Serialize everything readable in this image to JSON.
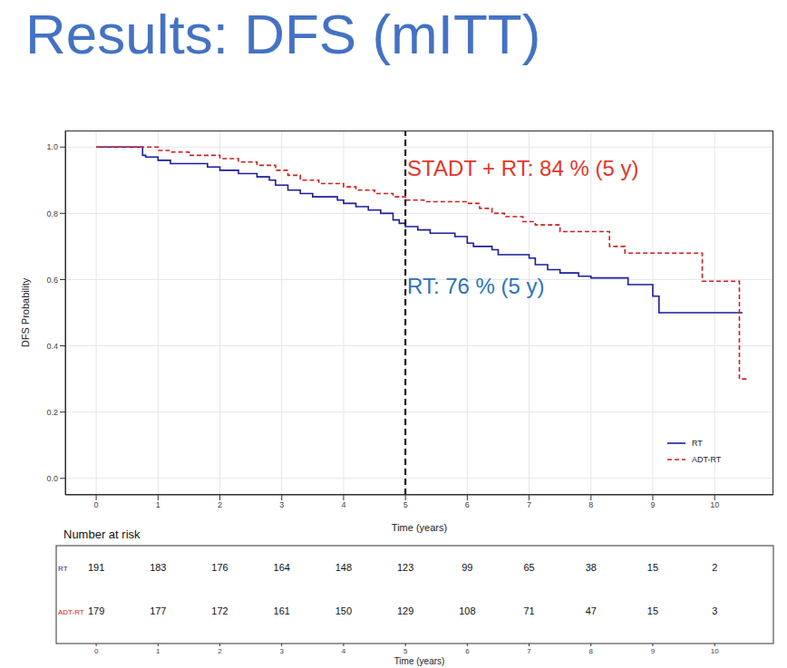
{
  "chart_data": {
    "type": "step",
    "title": "Results: DFS (mITT)",
    "x_label": "Time (years)",
    "y_label": "DFS Probability",
    "xlim": [
      -0.5,
      10.95
    ],
    "xticks": [
      0,
      1,
      2,
      3,
      4,
      5,
      6,
      7,
      8,
      9,
      10
    ],
    "ylim": [
      -0.05,
      1.05
    ],
    "yticks": [
      {
        "value": 0,
        "label": "0.0"
      },
      {
        "value": 0.2,
        "label": "0.2"
      },
      {
        "value": 0.4,
        "label": "0.4"
      },
      {
        "value": 0.6,
        "label": "0.6"
      },
      {
        "value": 0.8,
        "label": "0.8"
      },
      {
        "value": 1,
        "label": "1.0"
      }
    ],
    "grid": true,
    "legend": "bottom-right",
    "series": [
      {
        "name": "RT",
        "color": "#1c1c9c",
        "line_style": "solid",
        "x": [
          0,
          0.75,
          0.8,
          1.0,
          1.2,
          1.8,
          2.0,
          2.3,
          2.6,
          2.8,
          2.9,
          3.1,
          3.3,
          3.5,
          3.9,
          4.0,
          4.2,
          4.4,
          4.6,
          4.8,
          4.9,
          5.0,
          5.2,
          5.4,
          5.8,
          6.0,
          6.1,
          6.4,
          6.5,
          7.0,
          7.1,
          7.3,
          7.5,
          7.8,
          8.0,
          8.6,
          9.0,
          9.1,
          10.45
        ],
        "values": [
          1.0,
          0.975,
          0.97,
          0.96,
          0.95,
          0.94,
          0.93,
          0.92,
          0.91,
          0.9,
          0.885,
          0.87,
          0.86,
          0.85,
          0.84,
          0.83,
          0.82,
          0.81,
          0.8,
          0.78,
          0.77,
          0.76,
          0.75,
          0.74,
          0.73,
          0.71,
          0.7,
          0.69,
          0.675,
          0.665,
          0.645,
          0.63,
          0.62,
          0.61,
          0.605,
          0.585,
          0.55,
          0.5,
          0.5
        ]
      },
      {
        "name": "ADT-RT",
        "color": "#cc2020",
        "line_style": "dashed",
        "x": [
          0,
          1.0,
          1.2,
          1.5,
          2.0,
          2.3,
          2.6,
          2.9,
          3.1,
          3.3,
          3.6,
          4.0,
          4.2,
          4.5,
          4.8,
          5.0,
          5.3,
          6.0,
          6.2,
          6.4,
          6.6,
          6.9,
          7.1,
          7.5,
          8.3,
          8.55,
          9.8,
          10.4,
          10.55
        ],
        "values": [
          1.0,
          0.99,
          0.985,
          0.975,
          0.965,
          0.955,
          0.945,
          0.93,
          0.915,
          0.9,
          0.89,
          0.88,
          0.87,
          0.86,
          0.85,
          0.84,
          0.835,
          0.83,
          0.815,
          0.8,
          0.79,
          0.775,
          0.765,
          0.745,
          0.7,
          0.68,
          0.595,
          0.3,
          0.3
        ]
      }
    ],
    "reference_lines": [
      {
        "x": 5,
        "line_style": "dashed",
        "color": "#000000"
      }
    ],
    "annotations": [
      {
        "text": "STADT + RT: 84 % (5 y)",
        "color": "#e0382a"
      },
      {
        "text": "RT: 76 % (5 y)",
        "color": "#2e75b6"
      }
    ]
  },
  "risk_table": {
    "title": "Number at risk",
    "x_label": "Time (years)",
    "x": [
      0,
      1,
      2,
      3,
      4,
      5,
      6,
      7,
      8,
      9,
      10
    ],
    "rows": [
      {
        "name": "RT",
        "values": [
          191,
          183,
          176,
          164,
          148,
          123,
          99,
          65,
          38,
          15,
          2
        ]
      },
      {
        "name": "ADT-RT",
        "values": [
          179,
          177,
          172,
          161,
          150,
          129,
          108,
          71,
          47,
          15,
          3
        ]
      }
    ]
  }
}
